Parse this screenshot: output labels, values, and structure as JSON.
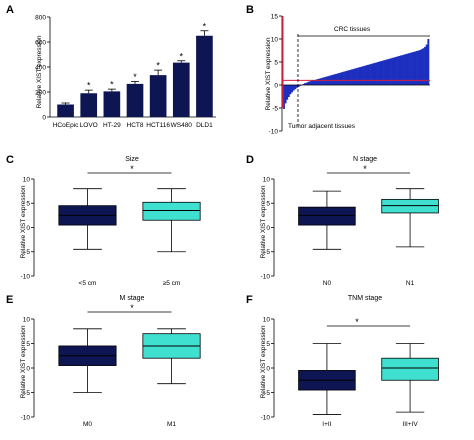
{
  "figure": {
    "colors": {
      "navy": "#0d1652",
      "cyan": "#3fe0d0",
      "blue": "#1d2fbf",
      "red": "#d61f3c",
      "axis": "#000000"
    }
  },
  "panels": [
    {
      "letter": "A",
      "title": "",
      "ylabel": "Relative XIST expression"
    },
    {
      "letter": "B",
      "title": "",
      "ylabel": "Relative XIST expression",
      "annotations": [
        "CRC tissues",
        "Tumor adjacent tissues"
      ]
    },
    {
      "letter": "C",
      "title": "Size",
      "ylabel": "Relative XIST expression",
      "significance": "*"
    },
    {
      "letter": "D",
      "title": "N stage",
      "ylabel": "Relative XIST expression",
      "significance": "*"
    },
    {
      "letter": "E",
      "title": "M stage",
      "ylabel": "Relative XIST expression",
      "significance": "*"
    },
    {
      "letter": "F",
      "title": "TNM stage",
      "ylabel": "Relative XIST expression",
      "significance": "*"
    }
  ],
  "chart_data": [
    {
      "panel": "A",
      "type": "bar",
      "categories": [
        "HCoEpic",
        "LOVO",
        "HT-29",
        "HCT8",
        "HCT116",
        "WS480",
        "DLD1"
      ],
      "values": [
        100,
        190,
        205,
        265,
        335,
        435,
        650
      ],
      "errors": [
        12,
        25,
        18,
        20,
        40,
        15,
        40
      ],
      "significance": [
        "",
        "*",
        "*",
        "*",
        "*",
        "*",
        "*"
      ],
      "ylabel": "Relative XIST expression",
      "ylim": [
        0,
        800
      ],
      "yticks": [
        0,
        200,
        400,
        600,
        800
      ],
      "grid": false
    },
    {
      "panel": "B",
      "type": "area",
      "ylabel": "Relative XIST expression",
      "ylim": [
        -10,
        15
      ],
      "yticks": [
        -10,
        -5,
        0,
        5,
        10,
        15
      ],
      "n_samples": 90,
      "values": [
        -5.2,
        -4.0,
        -3.2,
        -2.6,
        -2.0,
        -1.6,
        -1.2,
        -0.9,
        -0.6,
        -0.4,
        -0.2,
        0.0,
        0.2,
        0.4,
        0.5,
        0.7,
        0.8,
        0.9,
        1.0,
        1.1,
        1.2,
        1.3,
        1.4,
        1.5,
        1.6,
        1.7,
        1.8,
        1.9,
        2.0,
        2.1,
        2.2,
        2.3,
        2.4,
        2.5,
        2.6,
        2.7,
        2.8,
        2.9,
        3.0,
        3.1,
        3.2,
        3.3,
        3.4,
        3.5,
        3.6,
        3.7,
        3.8,
        3.9,
        4.0,
        4.1,
        4.2,
        4.3,
        4.4,
        4.5,
        4.6,
        4.7,
        4.8,
        4.9,
        5.0,
        5.1,
        5.2,
        5.3,
        5.4,
        5.5,
        5.6,
        5.7,
        5.8,
        5.9,
        6.0,
        6.1,
        6.2,
        6.3,
        6.4,
        6.5,
        6.6,
        6.7,
        6.8,
        6.9,
        7.0,
        7.1,
        7.2,
        7.3,
        7.4,
        7.5,
        7.6,
        7.8,
        8.0,
        8.3,
        8.8,
        10.0
      ],
      "reference_line": 1,
      "divider_index": 8,
      "crc_range_start_index": 8,
      "grid": false
    },
    {
      "panel": "C",
      "type": "box",
      "title": "Size",
      "categories": [
        "<5 cm",
        "≥5 cm"
      ],
      "boxes": [
        {
          "min": -4.5,
          "q1": 0.5,
          "median": 2.5,
          "q3": 4.5,
          "max": 8.0
        },
        {
          "min": -5.0,
          "q1": 1.5,
          "median": 3.5,
          "q3": 5.2,
          "max": 8.0
        }
      ],
      "ylabel": "Relative XIST expression",
      "ylim": [
        -10,
        10
      ],
      "yticks": [
        -10,
        -5,
        0,
        5,
        10
      ],
      "significance": "*",
      "grid": false
    },
    {
      "panel": "D",
      "type": "box",
      "title": "N stage",
      "categories": [
        "N0",
        "N1"
      ],
      "boxes": [
        {
          "min": -4.5,
          "q1": 0.5,
          "median": 2.5,
          "q3": 4.2,
          "max": 7.5
        },
        {
          "min": -4.0,
          "q1": 3.0,
          "median": 4.5,
          "q3": 5.8,
          "max": 8.0
        }
      ],
      "ylabel": "Relative XIST expression",
      "ylim": [
        -10,
        10
      ],
      "yticks": [
        -10,
        -5,
        0,
        5,
        10
      ],
      "significance": "*",
      "grid": false
    },
    {
      "panel": "E",
      "type": "box",
      "title": "M stage",
      "categories": [
        "M0",
        "M1"
      ],
      "boxes": [
        {
          "min": -5.0,
          "q1": 0.5,
          "median": 2.5,
          "q3": 4.5,
          "max": 8.0
        },
        {
          "min": -3.2,
          "q1": 2.0,
          "median": 4.5,
          "q3": 7.0,
          "max": 8.0
        }
      ],
      "ylabel": "Relative XIST expression",
      "ylim": [
        -10,
        10
      ],
      "yticks": [
        -10,
        -5,
        0,
        5,
        10
      ],
      "significance": "*",
      "grid": false
    },
    {
      "panel": "F",
      "type": "box",
      "title": "TNM stage",
      "categories": [
        "I+II",
        "III+IV"
      ],
      "boxes": [
        {
          "min": -9.5,
          "q1": -4.5,
          "median": -2.5,
          "q3": -0.5,
          "max": 5.0
        },
        {
          "min": -9.0,
          "q1": -2.5,
          "median": 0.0,
          "q3": 2.0,
          "max": 5.0
        }
      ],
      "ylabel": "Relative XIST expression",
      "ylim": [
        -10,
        10
      ],
      "yticks": [
        -10,
        -5,
        0,
        5,
        10
      ],
      "significance": "*",
      "grid": false
    }
  ]
}
